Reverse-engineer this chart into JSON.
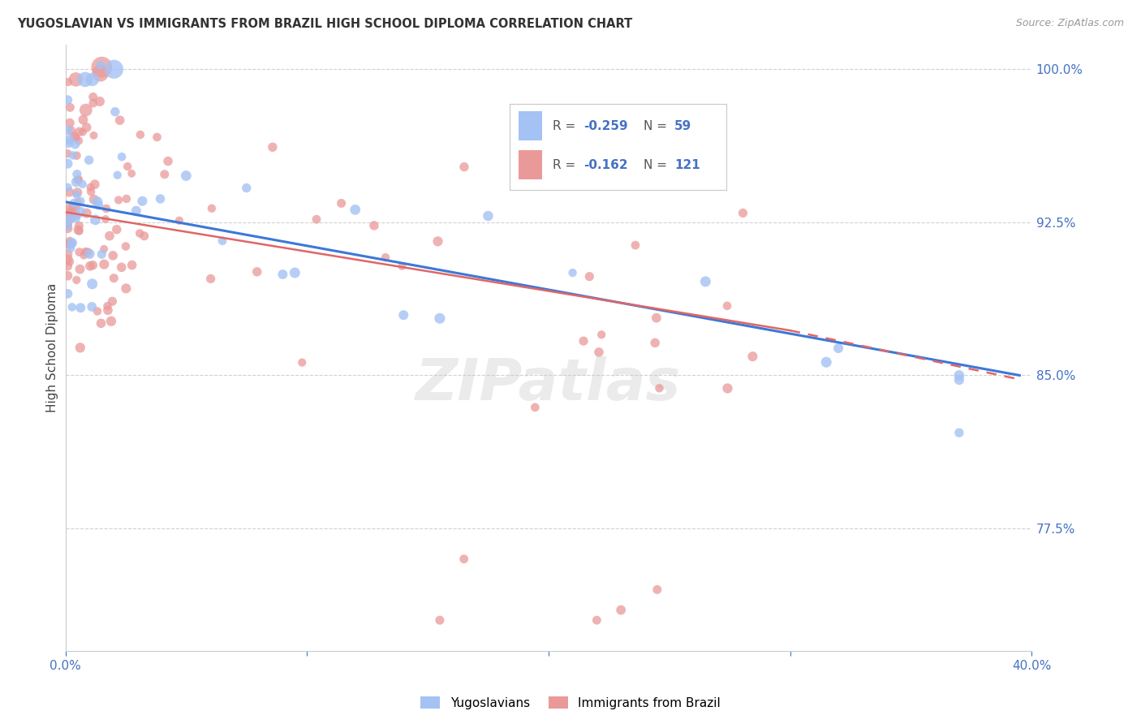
{
  "title": "YUGOSLAVIAN VS IMMIGRANTS FROM BRAZIL HIGH SCHOOL DIPLOMA CORRELATION CHART",
  "source": "Source: ZipAtlas.com",
  "ylabel": "High School Diploma",
  "x_min": 0.0,
  "x_max": 0.4,
  "y_min": 0.715,
  "y_max": 1.012,
  "blue_color": "#a4c2f4",
  "pink_color": "#ea9999",
  "blue_line_color": "#3c78d8",
  "pink_line_color": "#e06666",
  "grid_color": "#cccccc",
  "background_color": "#ffffff",
  "watermark_text": "ZIPatlas",
  "watermark_color": "#c8c8c8",
  "legend_R1": "-0.259",
  "legend_N1": "59",
  "legend_R2": "-0.162",
  "legend_N2": "121",
  "blue_trend_x0": 0.0,
  "blue_trend_y0": 0.935,
  "blue_trend_x1": 0.395,
  "blue_trend_y1": 0.85,
  "pink_trend_x0": 0.0,
  "pink_trend_y0": 0.93,
  "pink_trend_x1_solid": 0.3,
  "pink_trend_y1_solid": 0.872,
  "pink_trend_x1_dash": 0.395,
  "pink_trend_y1_dash": 0.848
}
